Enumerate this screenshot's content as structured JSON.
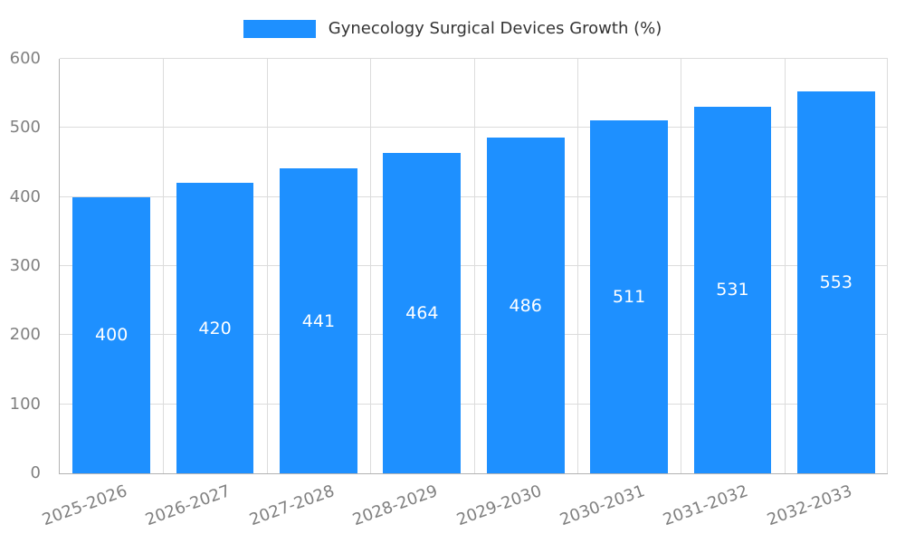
{
  "chart_data": {
    "type": "bar",
    "title": "Gynecology Surgical Devices Growth (%)",
    "categories": [
      "2025-2026",
      "2026-2027",
      "2027-2028",
      "2028-2029",
      "2029-2030",
      "2030-2031",
      "2031-2032",
      "2032-2033"
    ],
    "values": [
      400,
      420,
      441,
      464,
      486,
      511,
      531,
      553
    ],
    "xlabel": "",
    "ylabel": "",
    "ylim": [
      0,
      600
    ],
    "ytick_step": 100,
    "grid": true,
    "legend_position": "top",
    "legend_entries": [
      "Gynecology Surgical Devices Growth (%)"
    ],
    "colors": {
      "bar": "#1e90ff",
      "bar_value_label": "#ffffff",
      "axis_text": "#808080",
      "grid": "#dcdcdc",
      "axis_line": "#b3b3b3",
      "title": "#333333",
      "background": "#ffffff"
    }
  }
}
